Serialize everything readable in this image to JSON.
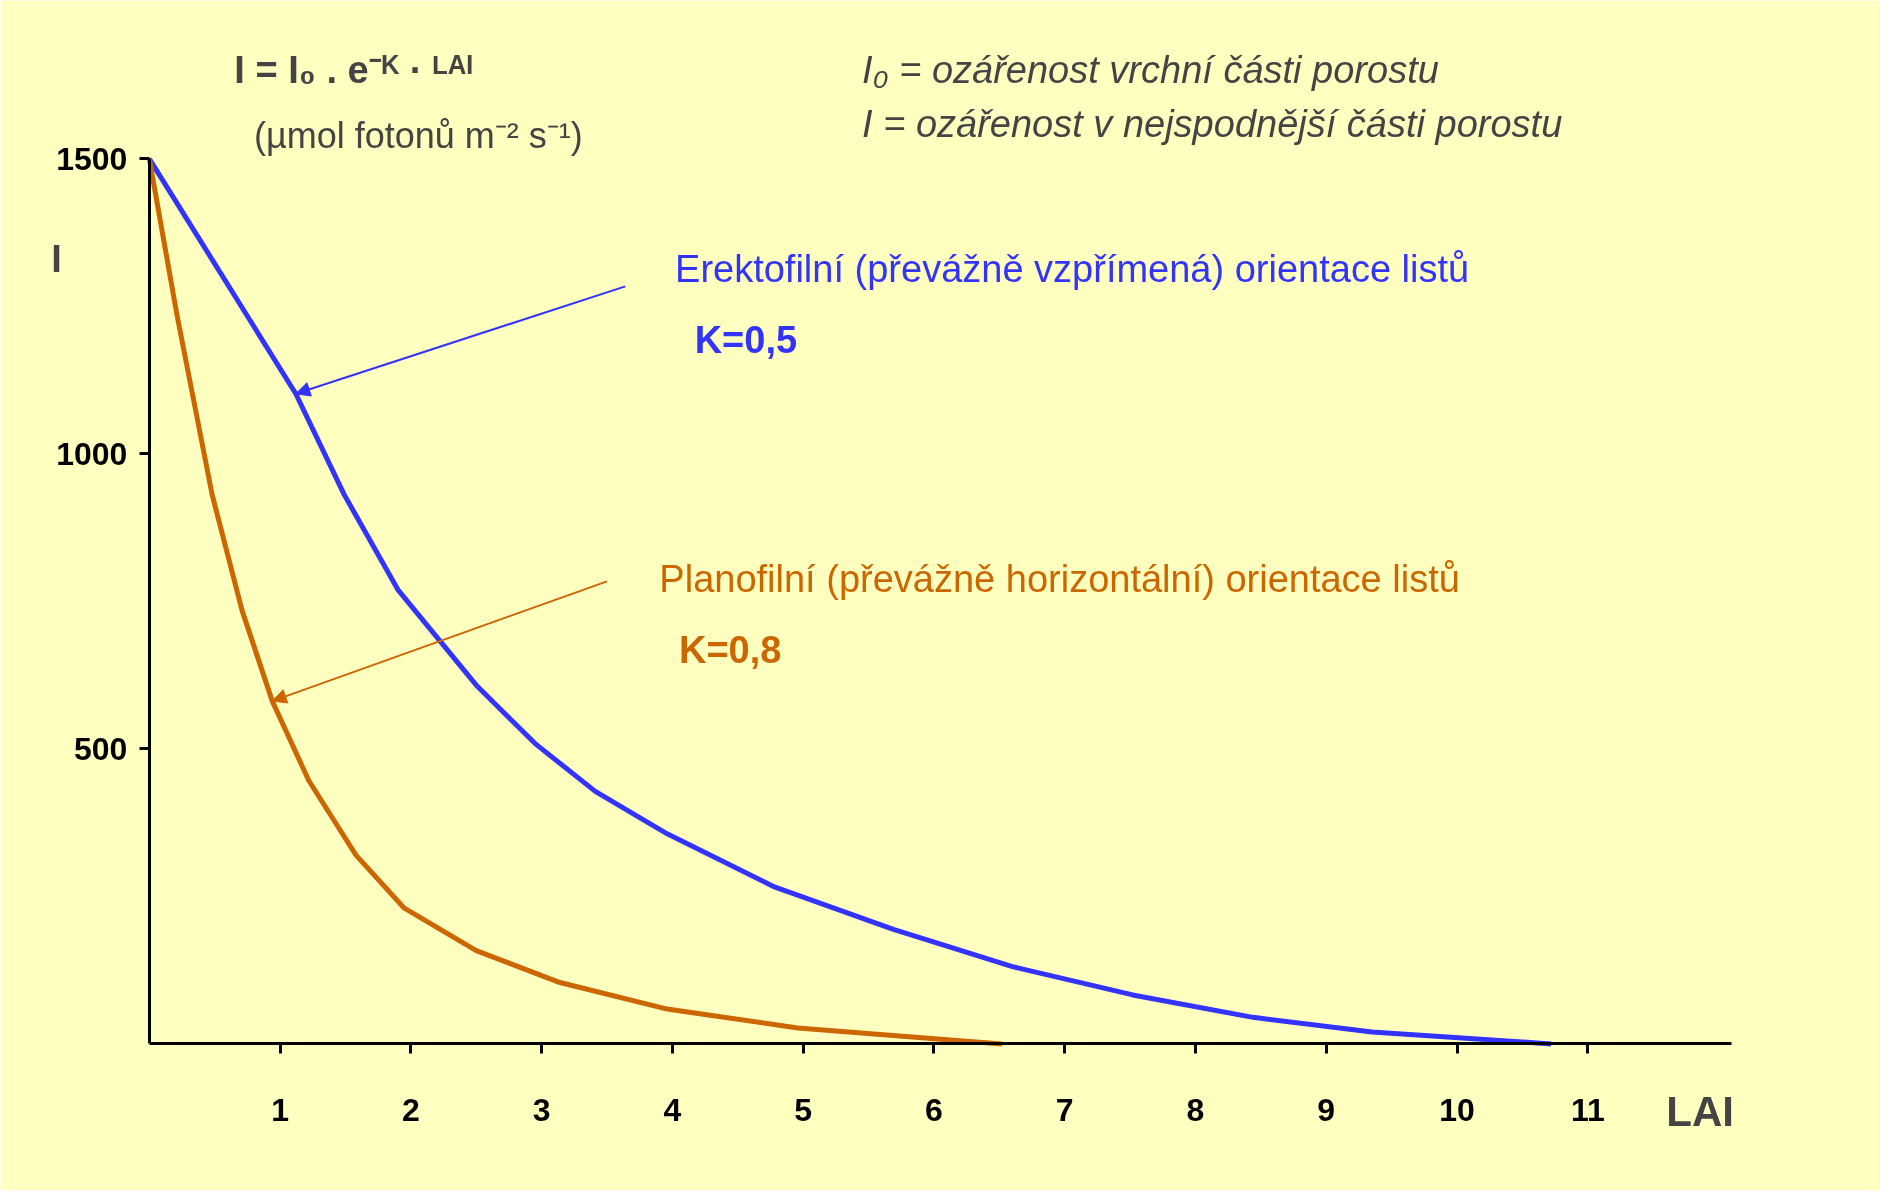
{
  "chart_data": {
    "type": "line",
    "title": "I = I₀ . e⁻ᴷ · ᴸᴬᴵ",
    "subtitle": "(µmol fotonů m⁻² s⁻¹)",
    "ylabel": "I",
    "xlabel": "LAI",
    "annotations": [
      "I₀ = ozářenost vrchní části porostu",
      "I = ozářenost v nejspodnější části porostu",
      "K=0,5",
      "K=0,8"
    ],
    "xlim": [
      0,
      12.1
    ],
    "ylim": [
      0,
      1500
    ],
    "xticks": [
      1,
      2,
      3,
      4,
      5,
      6,
      7,
      8,
      9,
      10,
      11
    ],
    "yticks": [
      500,
      1000,
      1500
    ],
    "grid": false,
    "marker": "none",
    "line_style": "solid",
    "series": [
      {
        "name": "Erektofilní (převážně vzpřímená) orientace listů",
        "color": "#3333ff",
        "x": [
          0,
          1.12,
          1.49,
          1.9,
          2.5,
          2.95,
          3.41,
          3.96,
          4.78,
          5.69,
          6.6,
          7.52,
          8.44,
          9.35,
          10.72
        ],
        "values": [
          1500,
          1102,
          931,
          770,
          608,
          509,
          428,
          356,
          266,
          194,
          131,
          83,
          45,
          20,
          0
        ]
      },
      {
        "name": "Planofilní (převážně horizontální) orientace listů",
        "color": "#cc6600",
        "x": [
          0,
          0.21,
          0.48,
          0.71,
          0.94,
          1.22,
          1.58,
          1.95,
          2.5,
          3.14,
          3.96,
          4.96,
          5.88,
          6.52
        ],
        "values": [
          1500,
          1237,
          931,
          734,
          581,
          446,
          320,
          230,
          158,
          104,
          59,
          27,
          11,
          0
        ]
      }
    ]
  }
}
